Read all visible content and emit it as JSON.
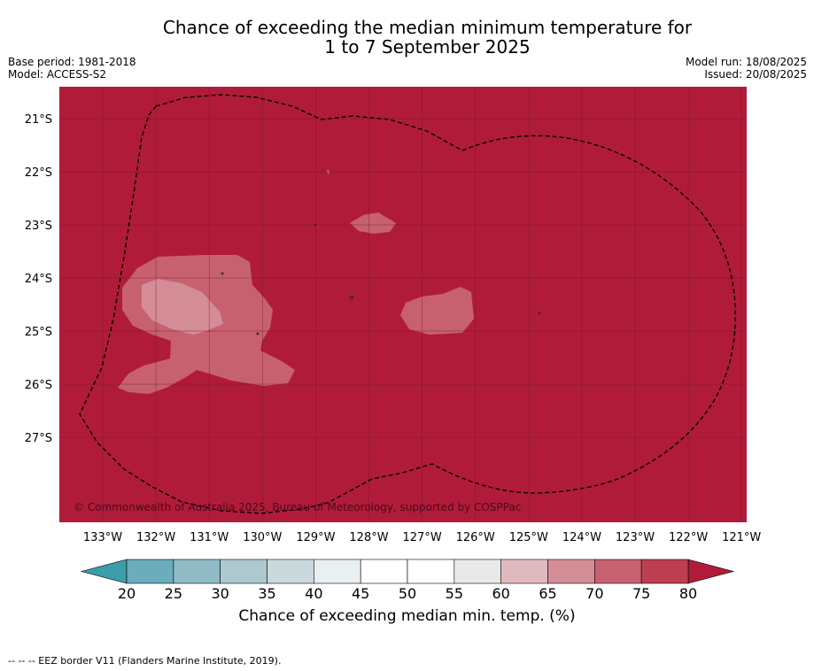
{
  "title_line1": "Chance of exceeding the median minimum temperature for",
  "title_line2": "1 to 7 September 2025",
  "meta": {
    "base_period": "Base period: 1981-2018",
    "model": "Model: ACCESS-S2",
    "model_run": "Model run: 18/08/2025",
    "issued": "Issued: 20/08/2025"
  },
  "map": {
    "lat_labels": [
      "21°S",
      "22°S",
      "23°S",
      "24°S",
      "25°S",
      "26°S",
      "27°S"
    ],
    "lon_labels": [
      "133°W",
      "132°W",
      "131°W",
      "130°W",
      "129°W",
      "128°W",
      "127°W",
      "126°W",
      "125°W",
      "124°W",
      "123°W",
      "122°W",
      "121°W"
    ],
    "copyright": "© Commonwealth of Australia 2025, Bureau of Meteorology, supported by COSPPac",
    "background_color": "#b11b3a"
  },
  "colorbar": {
    "ticks": [
      "20",
      "25",
      "30",
      "35",
      "40",
      "45",
      "50",
      "55",
      "60",
      "65",
      "70",
      "75",
      "80"
    ],
    "colors": [
      "#6aadbc",
      "#8fbac6",
      "#abc9cf",
      "#cad9dd",
      "#eaf0f2",
      "#ffffff",
      "#ffffff",
      "#e9e9e9",
      "#e0b9bf",
      "#d48d96",
      "#c8616f",
      "#bd3e51"
    ],
    "under_color": "#3c9dab",
    "over_color": "#b11b3a",
    "label": "Chance of exceeding median min. temp. (%)"
  },
  "footnote": "--  --  -- EEZ border V11 (Flanders Marine Institute, 2019)."
}
